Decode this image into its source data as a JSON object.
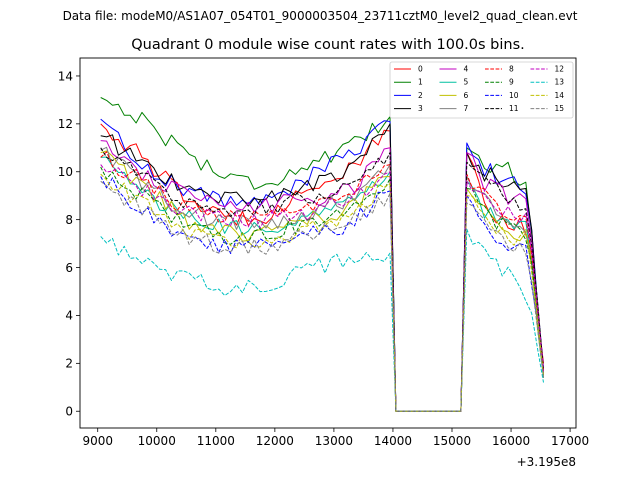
{
  "suptitle": "Data file: modeM0/AS1A07_054T01_9000003504_23711cztM0_level2_quad_clean.evt",
  "chart_data": {
    "type": "line",
    "title": "Quadrant 0 module wise count rates with 100.0s bins.",
    "xlabel": "",
    "ylabel": "",
    "x_offset_label": "+3.195e8",
    "xlim": [
      8700,
      17100
    ],
    "ylim": [
      -0.7,
      14.75
    ],
    "xticks": [
      9000,
      10000,
      11000,
      12000,
      13000,
      14000,
      15000,
      16000,
      17000
    ],
    "xtick_labels": [
      "9000",
      "10000",
      "11000",
      "12000",
      "13000",
      "14000",
      "15000",
      "16000",
      "17000"
    ],
    "yticks": [
      0,
      2,
      4,
      6,
      8,
      10,
      12,
      14
    ],
    "ytick_labels": [
      "0",
      "2",
      "4",
      "6",
      "8",
      "10",
      "12",
      "14"
    ],
    "grid": false,
    "legend_position": "top-right",
    "legend_columns": 4,
    "segment1": {
      "x_start": 9050,
      "x_step": 100,
      "count": 50
    },
    "gap": {
      "x": [
        14050,
        14150,
        15150
      ],
      "value": 0
    },
    "segment2": {
      "x_start": 15250,
      "x_step": 100,
      "count": 14
    },
    "series": [
      {
        "name": "0",
        "color": "#ff0000",
        "dash": "solid",
        "seg1_shape": [
          12.0,
          10.6,
          9.0,
          8.0,
          8.2,
          9.3,
          10.0,
          11.7
        ],
        "seg2_shape": [
          10.8,
          9.2,
          8.0,
          7.8,
          7.6,
          2.0
        ]
      },
      {
        "name": "1",
        "color": "#008000",
        "dash": "solid",
        "seg1_shape": [
          13.1,
          12.2,
          10.9,
          9.8,
          9.5,
          10.3,
          10.9,
          12.3
        ],
        "seg2_shape": [
          11.0,
          10.5,
          10.2,
          10.0,
          9.3,
          1.7
        ]
      },
      {
        "name": "2",
        "color": "#0000ff",
        "dash": "solid",
        "seg1_shape": [
          12.2,
          10.3,
          9.3,
          8.8,
          8.7,
          9.8,
          10.6,
          12.1
        ],
        "seg2_shape": [
          11.2,
          10.2,
          9.8,
          9.5,
          9.2,
          1.8
        ]
      },
      {
        "name": "3",
        "color": "#000000",
        "dash": "solid",
        "seg1_shape": [
          11.5,
          10.4,
          9.3,
          8.9,
          8.9,
          9.4,
          10.0,
          12.0
        ],
        "seg2_shape": [
          10.8,
          10.0,
          9.7,
          9.4,
          9.0,
          1.6
        ]
      },
      {
        "name": "4",
        "color": "#c000c0",
        "dash": "solid",
        "seg1_shape": [
          11.3,
          10.0,
          9.0,
          8.5,
          8.6,
          8.8,
          9.2,
          11.0
        ],
        "seg2_shape": [
          10.8,
          9.6,
          9.2,
          8.8,
          9.0,
          1.7
        ]
      },
      {
        "name": "5",
        "color": "#00c0a0",
        "dash": "solid",
        "seg1_shape": [
          10.6,
          9.2,
          8.1,
          7.6,
          7.6,
          8.2,
          8.7,
          10.0
        ],
        "seg2_shape": [
          9.6,
          8.5,
          8.0,
          7.6,
          7.6,
          1.4
        ]
      },
      {
        "name": "6",
        "color": "#c0c000",
        "dash": "solid",
        "seg1_shape": [
          10.8,
          9.4,
          8.0,
          7.4,
          7.5,
          8.0,
          8.5,
          9.8
        ],
        "seg2_shape": [
          9.3,
          8.3,
          7.7,
          7.3,
          7.5,
          1.5
        ]
      },
      {
        "name": "7",
        "color": "#808080",
        "dash": "solid",
        "seg1_shape": [
          10.9,
          9.5,
          8.4,
          7.9,
          7.8,
          8.3,
          8.9,
          10.3
        ],
        "seg2_shape": [
          9.8,
          8.8,
          8.4,
          7.9,
          7.8,
          1.6
        ]
      },
      {
        "name": "8",
        "color": "#ff0000",
        "dash": "dashed",
        "seg1_shape": [
          10.6,
          9.6,
          8.6,
          8.0,
          8.0,
          8.4,
          8.9,
          10.3
        ],
        "seg2_shape": [
          9.9,
          9.0,
          8.6,
          8.3,
          8.0,
          1.7
        ]
      },
      {
        "name": "9",
        "color": "#008000",
        "dash": "dashed",
        "seg1_shape": [
          10.2,
          9.0,
          7.9,
          7.3,
          7.4,
          7.9,
          8.3,
          9.7
        ],
        "seg2_shape": [
          9.3,
          8.3,
          7.9,
          7.5,
          7.4,
          1.4
        ]
      },
      {
        "name": "10",
        "color": "#0000ff",
        "dash": "dashed",
        "seg1_shape": [
          9.8,
          8.4,
          7.3,
          6.9,
          6.9,
          7.4,
          7.8,
          9.2
        ],
        "seg2_shape": [
          9.0,
          7.6,
          7.0,
          6.6,
          6.8,
          1.5
        ]
      },
      {
        "name": "11",
        "color": "#000000",
        "dash": "dashed",
        "seg1_shape": [
          11.0,
          9.8,
          8.8,
          8.4,
          8.5,
          8.9,
          9.4,
          10.8
        ],
        "seg2_shape": [
          10.4,
          9.6,
          9.2,
          8.8,
          8.6,
          1.7
        ]
      },
      {
        "name": "12",
        "color": "#c000c0",
        "dash": "dashed",
        "seg1_shape": [
          10.3,
          9.3,
          8.4,
          8.0,
          8.0,
          8.3,
          8.7,
          10.0
        ],
        "seg2_shape": [
          9.6,
          8.8,
          8.5,
          8.1,
          8.0,
          1.6
        ]
      },
      {
        "name": "13",
        "color": "#00c0c0",
        "dash": "dashed",
        "seg1_shape": [
          7.3,
          6.2,
          5.5,
          5.2,
          5.3,
          5.9,
          6.4,
          6.6
        ],
        "seg2_shape": [
          7.6,
          6.6,
          6.1,
          5.8,
          4.5,
          1.2
        ]
      },
      {
        "name": "14",
        "color": "#c0c000",
        "dash": "dashed",
        "seg1_shape": [
          9.9,
          8.7,
          7.6,
          7.1,
          7.1,
          7.6,
          8.1,
          9.5
        ],
        "seg2_shape": [
          9.0,
          8.0,
          7.6,
          7.1,
          7.3,
          1.5
        ]
      },
      {
        "name": "15",
        "color": "#808080",
        "dash": "dashed",
        "seg1_shape": [
          9.6,
          8.4,
          7.3,
          6.8,
          6.9,
          7.4,
          7.8,
          9.1
        ],
        "seg2_shape": [
          8.7,
          7.8,
          7.4,
          7.0,
          6.5,
          1.4
        ]
      }
    ]
  }
}
